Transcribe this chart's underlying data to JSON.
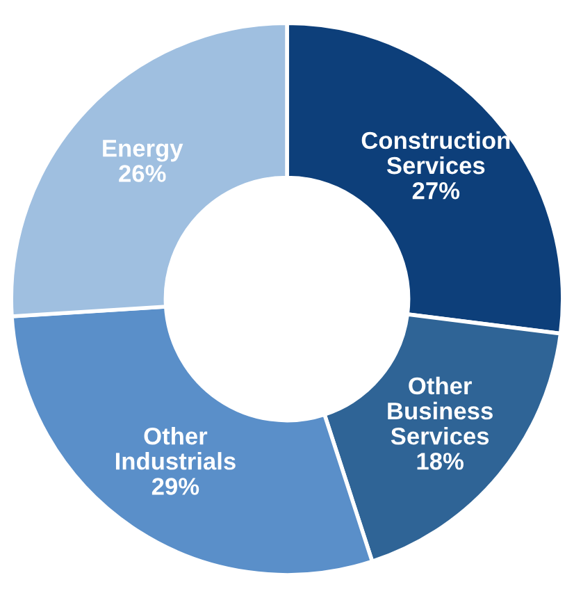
{
  "chart_data": {
    "type": "donut",
    "categories": [
      "Construction\nServices",
      "Other\nBusiness\nServices",
      "Other\nIndustrials",
      "Energy"
    ],
    "values": [
      27,
      18,
      29,
      26
    ],
    "value_labels": [
      "27%",
      "18%",
      "29%",
      "26%"
    ],
    "colors": [
      "#0d3f7a",
      "#2f6496",
      "#5a8fc9",
      "#9fbfe0"
    ],
    "legend": false
  }
}
